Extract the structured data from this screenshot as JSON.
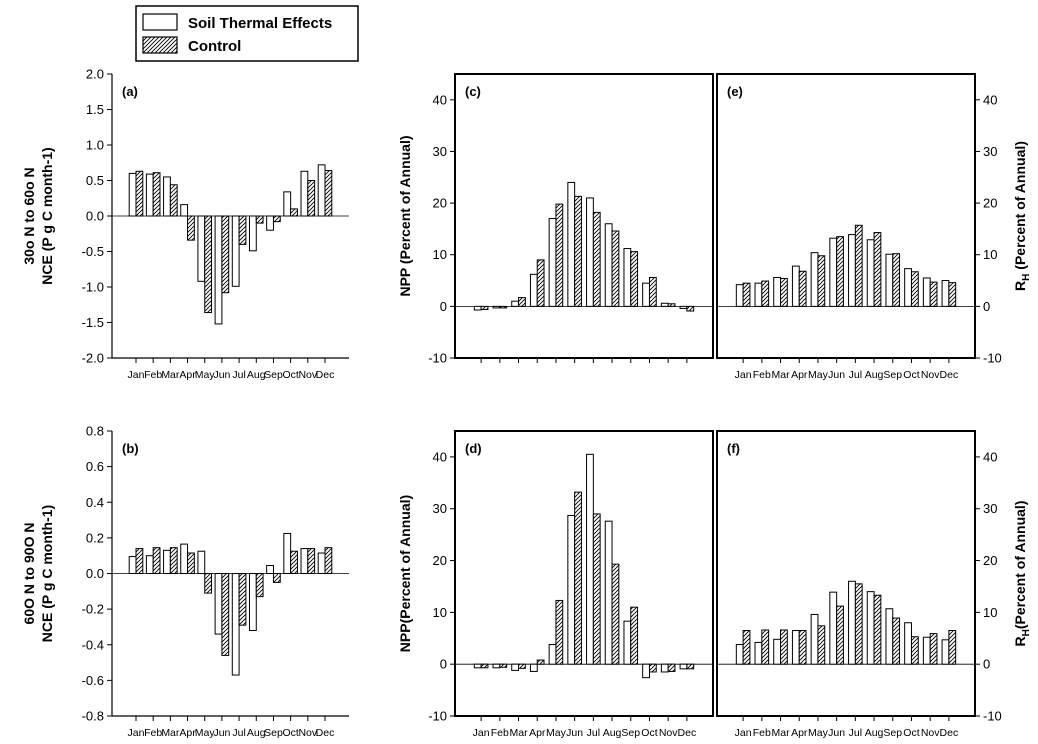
{
  "legend": {
    "entries": [
      {
        "name": "Soil Thermal Effects",
        "style": "open"
      },
      {
        "name": "Control",
        "style": "hatched"
      }
    ]
  },
  "chart_data": [
    {
      "id": "a",
      "panel_label": "(a)",
      "type": "bar",
      "ylabel_lines": [
        "30o N to 60o N",
        "NCE (P g C month-1)"
      ],
      "ylim": [
        -2.0,
        2.0
      ],
      "yticks": [
        -2.0,
        -1.5,
        -1.0,
        -0.5,
        0.0,
        0.5,
        1.0,
        1.5,
        2.0
      ],
      "ytick_decimals": 1,
      "categories": [
        "Jan",
        "Feb",
        "Mar",
        "Apr",
        "May",
        "Jun",
        "Jul",
        "Aug",
        "Sep",
        "Oct",
        "Nov",
        "Dec"
      ],
      "series": [
        {
          "name": "Soil Thermal Effects",
          "values": [
            0.6,
            0.59,
            0.55,
            0.16,
            -0.92,
            -1.52,
            -0.99,
            -0.49,
            -0.2,
            0.34,
            0.63,
            0.72
          ]
        },
        {
          "name": "Control",
          "values": [
            0.63,
            0.61,
            0.44,
            -0.34,
            -1.36,
            -1.08,
            -0.4,
            -0.1,
            -0.08,
            0.1,
            0.5,
            0.64
          ]
        }
      ],
      "month_labels_shown": true
    },
    {
      "id": "b",
      "panel_label": "(b)",
      "type": "bar",
      "ylabel_lines": [
        "60O N to 90O N",
        "NCE (P g C month-1)"
      ],
      "ylim": [
        -0.8,
        0.8
      ],
      "yticks": [
        -0.8,
        -0.6,
        -0.4,
        -0.2,
        0.0,
        0.2,
        0.4,
        0.6,
        0.8
      ],
      "ytick_decimals": 1,
      "categories": [
        "Jan",
        "Feb",
        "Mar",
        "Apr",
        "May",
        "Jun",
        "Jul",
        "Aug",
        "Sep",
        "Oct",
        "Nov",
        "Dec"
      ],
      "series": [
        {
          "name": "Soil Thermal Effects",
          "values": [
            0.095,
            0.1,
            0.13,
            0.165,
            0.125,
            -0.34,
            -0.57,
            -0.32,
            0.045,
            0.225,
            0.14,
            0.115
          ]
        },
        {
          "name": "Control",
          "values": [
            0.14,
            0.145,
            0.145,
            0.115,
            -0.11,
            -0.46,
            -0.29,
            -0.13,
            -0.05,
            0.125,
            0.14,
            0.145
          ]
        }
      ],
      "month_labels_shown": true
    },
    {
      "id": "c",
      "panel_label": "(c)",
      "type": "bar",
      "ylabel_lines": [
        "NPP (Percent of Annual)"
      ],
      "ylim": [
        -10,
        45
      ],
      "yticks": [
        -10,
        0,
        10,
        20,
        30,
        40
      ],
      "ytick_decimals": 0,
      "categories": [
        "Jan",
        "Feb",
        "Mar",
        "Apr",
        "May",
        "Jun",
        "Jul",
        "Aug",
        "Sep",
        "Oct",
        "Nov",
        "Dec"
      ],
      "series": [
        {
          "name": "Soil Thermal Effects",
          "values": [
            -0.7,
            -0.3,
            1.0,
            6.2,
            17.0,
            24.0,
            21.0,
            16.0,
            11.2,
            4.5,
            0.6,
            -0.4
          ]
        },
        {
          "name": "Control",
          "values": [
            -0.6,
            -0.3,
            1.7,
            9.0,
            19.8,
            21.3,
            18.2,
            14.6,
            10.6,
            5.6,
            0.5,
            -0.9
          ]
        }
      ],
      "month_labels_shown": false
    },
    {
      "id": "d",
      "panel_label": "(d)",
      "type": "bar",
      "ylabel_lines": [
        "NPP(Percent of Annual)"
      ],
      "ylim": [
        -10,
        45
      ],
      "yticks": [
        -10,
        0,
        10,
        20,
        30,
        40
      ],
      "ytick_decimals": 0,
      "categories": [
        "Jan",
        "Feb",
        "Mar",
        "Apr",
        "May",
        "Jun",
        "Jul",
        "Aug",
        "Sep",
        "Oct",
        "Nov",
        "Dec"
      ],
      "series": [
        {
          "name": "Soil Thermal Effects",
          "values": [
            -0.7,
            -0.7,
            -1.2,
            -1.4,
            3.8,
            28.7,
            40.5,
            27.6,
            8.3,
            -2.6,
            -1.5,
            -0.9
          ]
        },
        {
          "name": "Control",
          "values": [
            -0.7,
            -0.6,
            -0.8,
            0.8,
            12.3,
            33.2,
            29.0,
            19.3,
            11.0,
            -1.5,
            -1.4,
            -0.9
          ]
        }
      ],
      "month_labels_shown": true
    },
    {
      "id": "e",
      "panel_label": "(e)",
      "type": "bar",
      "ylabel_main": "R",
      "ylabel_sub": "H",
      "ylabel_rest": " (Percent of Annual)",
      "ylim": [
        -10,
        45
      ],
      "yticks": [
        -10,
        0,
        10,
        20,
        30,
        40
      ],
      "ytick_decimals": 0,
      "categories": [
        "Jan",
        "Feb",
        "Mar",
        "Apr",
        "May",
        "Jun",
        "Jul",
        "Aug",
        "Sep",
        "Oct",
        "Nov",
        "Dec"
      ],
      "series": [
        {
          "name": "Soil Thermal Effects",
          "values": [
            4.2,
            4.5,
            5.6,
            7.8,
            10.4,
            13.2,
            13.9,
            12.9,
            10.1,
            7.3,
            5.5,
            5.0
          ]
        },
        {
          "name": "Control",
          "values": [
            4.5,
            4.9,
            5.4,
            6.8,
            9.8,
            13.5,
            15.7,
            14.3,
            10.2,
            6.7,
            4.7,
            4.6
          ]
        }
      ],
      "month_labels_shown": true
    },
    {
      "id": "f",
      "panel_label": "(f)",
      "type": "bar",
      "ylabel_main": "R",
      "ylabel_sub": "H",
      "ylabel_rest": "(Percent of Annual)",
      "ylim": [
        -10,
        45
      ],
      "yticks": [
        -10,
        0,
        10,
        20,
        30,
        40
      ],
      "ytick_decimals": 0,
      "categories": [
        "Jan",
        "Feb",
        "Mar",
        "Apr",
        "May",
        "Jun",
        "Jul",
        "Aug",
        "Sep",
        "Oct",
        "Nov",
        "Dec"
      ],
      "series": [
        {
          "name": "Soil Thermal Effects",
          "values": [
            3.8,
            4.2,
            4.8,
            6.5,
            9.6,
            13.9,
            16.0,
            14.0,
            10.7,
            8.0,
            5.2,
            4.7
          ]
        },
        {
          "name": "Control",
          "values": [
            6.5,
            6.6,
            6.6,
            6.5,
            7.4,
            11.2,
            15.5,
            13.3,
            8.9,
            5.3,
            5.9,
            6.5
          ]
        }
      ],
      "month_labels_shown": true
    }
  ]
}
